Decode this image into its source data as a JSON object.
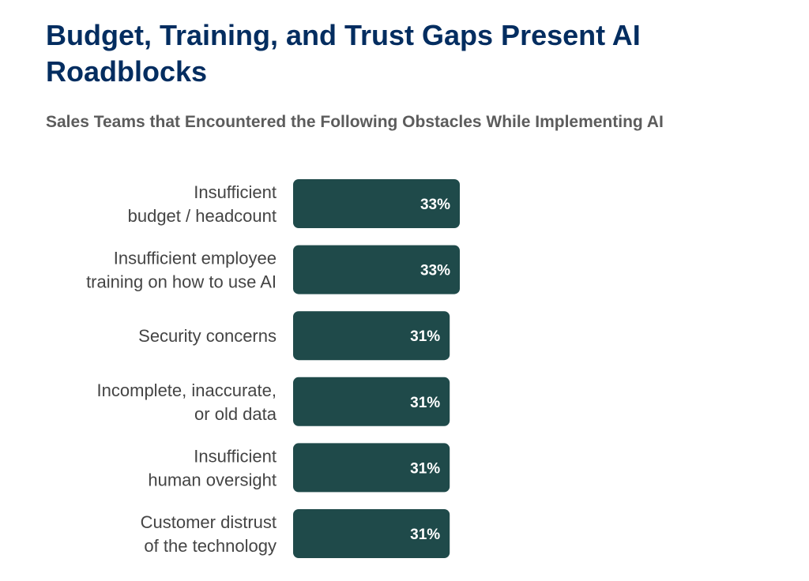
{
  "title": "Budget, Training, and Trust Gaps Present AI Roadblocks",
  "subtitle": "Sales Teams that Encountered the Following Obstacles While Implementing AI",
  "colors": {
    "title": "#032d60",
    "subtitle": "#5c5c5c",
    "bar": "#1f4a4a",
    "bar_label": "#ffffff",
    "category_label": "#444444"
  },
  "chart_data": {
    "type": "bar",
    "orientation": "horizontal",
    "title": "Budget, Training, and Trust Gaps Present AI Roadblocks",
    "subtitle": "Sales Teams that Encountered the Following Obstacles While Implementing AI",
    "categories": [
      [
        "Insufficient",
        "budget / headcount"
      ],
      [
        "Insufficient employee",
        "training on how to use AI"
      ],
      [
        "Security concerns"
      ],
      [
        "Incomplete, inaccurate,",
        "or old data"
      ],
      [
        "Insufficient",
        "human oversight"
      ],
      [
        "Customer distrust",
        "of the technology"
      ]
    ],
    "values": [
      33,
      33,
      31,
      31,
      31,
      31
    ],
    "value_labels": [
      "33%",
      "33%",
      "31%",
      "31%",
      "31%",
      "31%"
    ],
    "unit": "%",
    "xlabel": "",
    "ylabel": "",
    "grid": false,
    "legend": "none"
  }
}
